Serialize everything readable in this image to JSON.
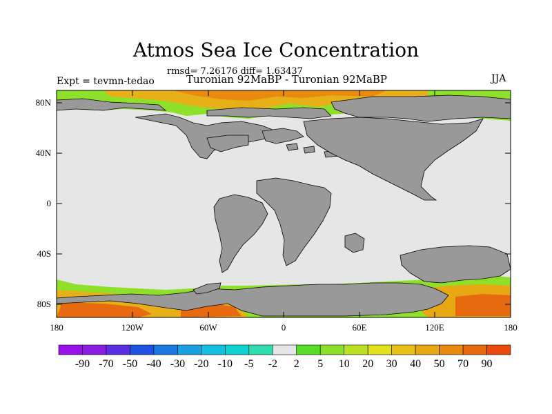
{
  "title": "Atmos Sea Ice Concentration",
  "stats_line": "rmsd= 7.26176 diff= 1.63437",
  "experiment_label": "Expt = tevmn-tedao",
  "comparison_label": "Turonian  92MaBP - Turonian  92MaBP",
  "season": "JJA",
  "latitude_labels": [
    "80N",
    "40N",
    "0",
    "40S",
    "80S"
  ],
  "longitude_labels": [
    "180",
    "120W",
    "60W",
    "0",
    "60E",
    "120E",
    "180"
  ],
  "colorbar": {
    "labels": [
      "-90",
      "-70",
      "-50",
      "-40",
      "-30",
      "-20",
      "-10",
      "-5",
      "-2",
      "2",
      "5",
      "10",
      "20",
      "30",
      "40",
      "50",
      "70",
      "90"
    ],
    "colors": [
      "#8a1ee0",
      "#5a2fe0",
      "#1f52e0",
      "#1a78e0",
      "#1aa0e0",
      "#16bfe0",
      "#10d2d0",
      "#30dcb0",
      "#e6e6e6",
      "#58dc2a",
      "#8ae02a",
      "#bce022",
      "#e2e01c",
      "#e8c018",
      "#e8a814",
      "#e88a10",
      "#e86a10",
      "#e84a10"
    ]
  },
  "colors": {
    "ocean": "#e6e6e6",
    "land": "#999999",
    "ice_low": "#58dc2a",
    "ice_mid": "#e8c018",
    "ice_high": "#e86a10"
  }
}
